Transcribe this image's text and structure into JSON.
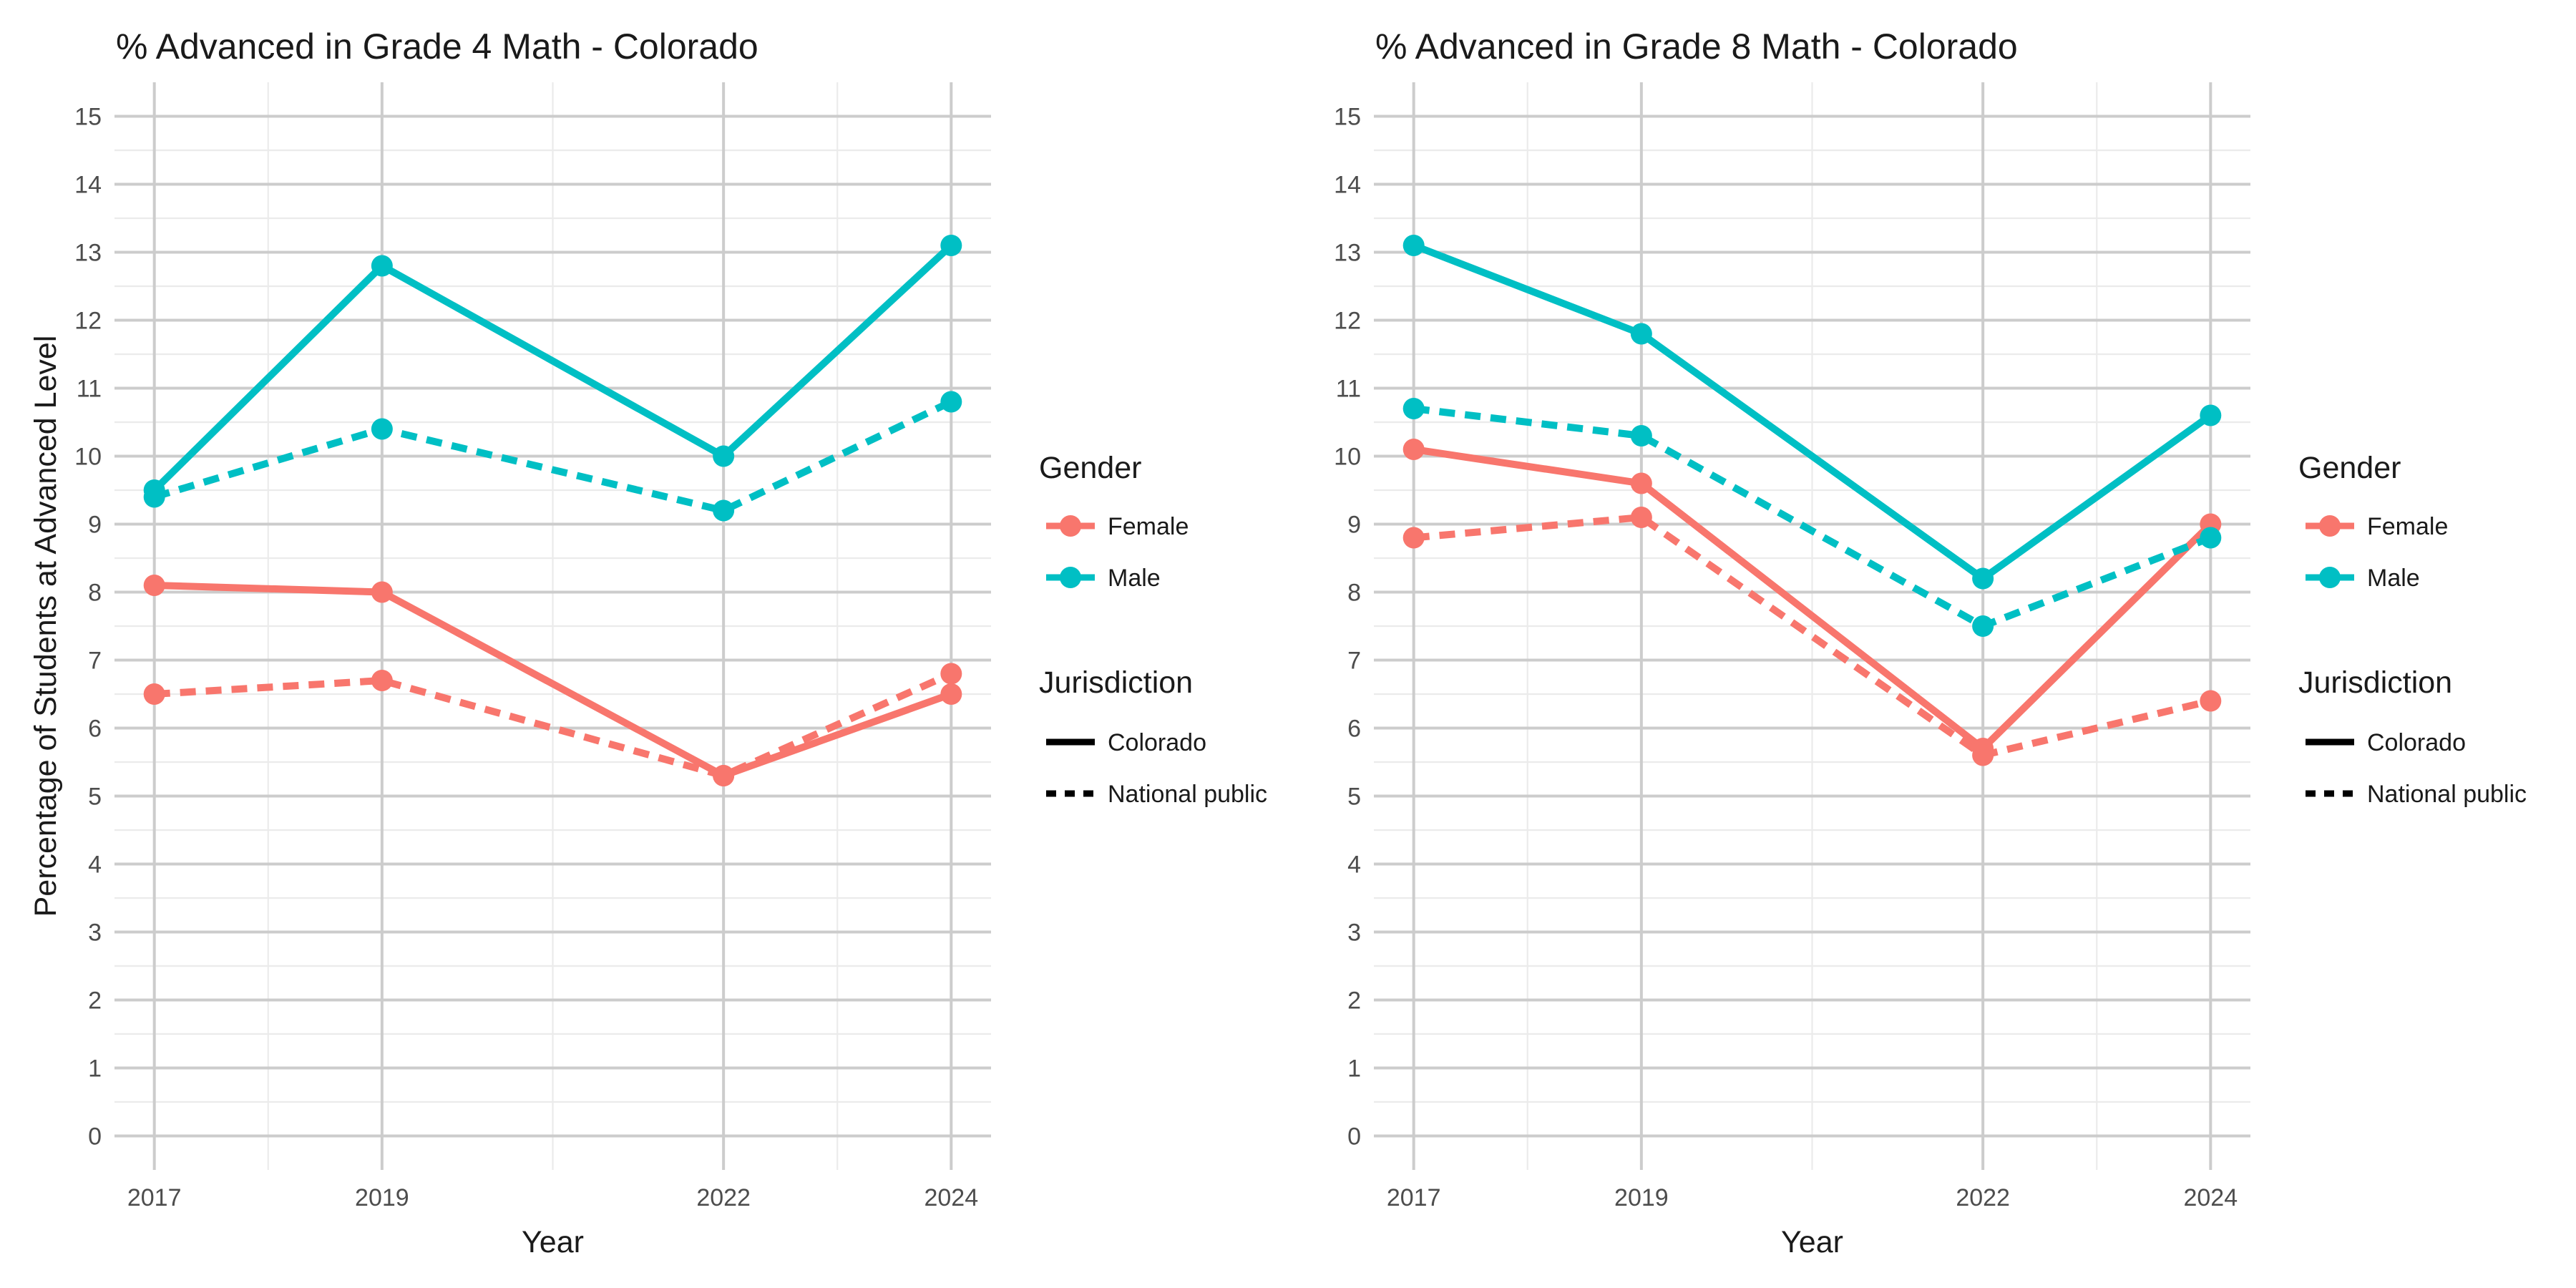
{
  "colors": {
    "Female": "#F8766D",
    "Male": "#00BFC4",
    "grid_major": "#cccccc",
    "grid_minor": "#ebebeb"
  },
  "legend": {
    "gender_title": "Gender",
    "gender_items": [
      "Female",
      "Male"
    ],
    "jurisdiction_title": "Jurisdiction",
    "jurisdiction_items": [
      "Colorado",
      "National public"
    ]
  },
  "chart_data": [
    {
      "type": "line",
      "title": "% Advanced in Grade 4 Math - Colorado",
      "xlabel": "Year",
      "ylabel": "Percentage of Students at Advanced Level",
      "x": [
        2017,
        2019,
        2022,
        2024
      ],
      "xlim": [
        2016.65,
        2024.35
      ],
      "ylim": [
        -0.5,
        15.5
      ],
      "yticks": [
        0,
        1,
        2,
        3,
        4,
        5,
        6,
        7,
        8,
        9,
        10,
        11,
        12,
        13,
        14,
        15
      ],
      "series": [
        {
          "name": "Female",
          "jurisdiction": "Colorado",
          "values": [
            8.1,
            8.0,
            5.3,
            6.5
          ]
        },
        {
          "name": "Female",
          "jurisdiction": "National public",
          "values": [
            6.5,
            6.7,
            5.3,
            6.8
          ]
        },
        {
          "name": "Male",
          "jurisdiction": "Colorado",
          "values": [
            9.5,
            12.8,
            10.0,
            13.1
          ]
        },
        {
          "name": "Male",
          "jurisdiction": "National public",
          "values": [
            9.4,
            10.4,
            9.2,
            10.8
          ]
        }
      ]
    },
    {
      "type": "line",
      "title": "% Advanced in Grade 8 Math - Colorado",
      "xlabel": "Year",
      "ylabel": "",
      "x": [
        2017,
        2019,
        2022,
        2024
      ],
      "xlim": [
        2016.65,
        2024.35
      ],
      "ylim": [
        -0.5,
        15.5
      ],
      "yticks": [
        0,
        1,
        2,
        3,
        4,
        5,
        6,
        7,
        8,
        9,
        10,
        11,
        12,
        13,
        14,
        15
      ],
      "series": [
        {
          "name": "Female",
          "jurisdiction": "Colorado",
          "values": [
            10.1,
            9.6,
            5.7,
            9.0
          ]
        },
        {
          "name": "Female",
          "jurisdiction": "National public",
          "values": [
            8.8,
            9.1,
            5.6,
            6.4
          ]
        },
        {
          "name": "Male",
          "jurisdiction": "Colorado",
          "values": [
            13.1,
            11.8,
            8.2,
            10.6
          ]
        },
        {
          "name": "Male",
          "jurisdiction": "National public",
          "values": [
            10.7,
            10.3,
            7.5,
            8.8
          ]
        }
      ]
    }
  ]
}
